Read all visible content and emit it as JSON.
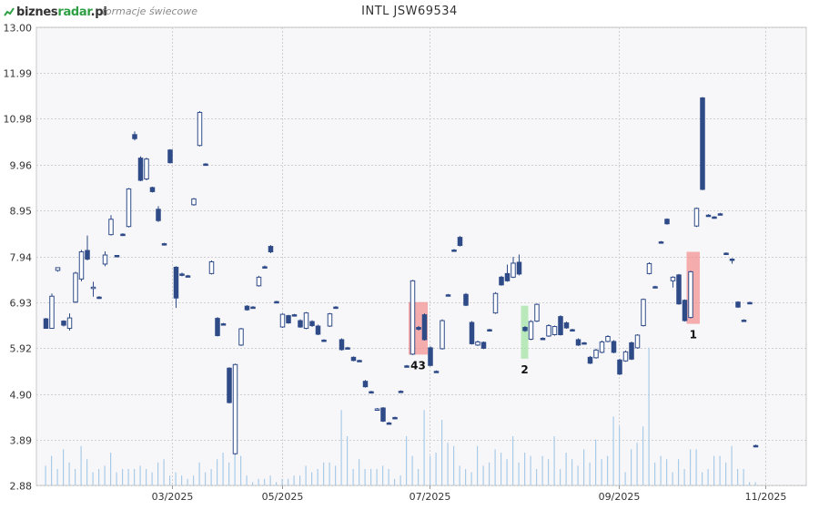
{
  "header": {
    "logo_biznes": "biznes",
    "logo_radar": "radar",
    "logo_pl": ".pl",
    "subtitle": "formacje świecowe",
    "title": "INTL JSW69534"
  },
  "colors": {
    "bear": "#2e4a87",
    "bull_fill": "#ffffff",
    "bull_stroke": "#2e4a87",
    "volume": "#a9cbe8",
    "pattern_bear": "#f28c8c",
    "pattern_bull": "#9ee39e",
    "grid": "#d0d0d0",
    "plot_bg": "#f7f7fa"
  },
  "chart_data": {
    "type": "candlestick",
    "title": "INTL JSW69534",
    "ylim": [
      2.88,
      13.0
    ],
    "y_ticks": [
      "2.88",
      "3.89",
      "4.90",
      "5.92",
      "6.93",
      "7.94",
      "8.95",
      "9.96",
      "10.98",
      "11.99",
      "13.00"
    ],
    "x_ticks": [
      "03/2025",
      "05/2025",
      "07/2025",
      "09/2025",
      "11/2025"
    ],
    "grid": true,
    "candles": [
      [
        6.56,
        6.35,
        6.58,
        6.35
      ],
      [
        6.35,
        7.06,
        7.12,
        6.35
      ],
      [
        7.63,
        7.69,
        7.69,
        7.6
      ],
      [
        6.51,
        6.42,
        6.53,
        6.39
      ],
      [
        6.35,
        6.58,
        6.68,
        6.3
      ],
      [
        6.93,
        7.57,
        7.6,
        6.91
      ],
      [
        7.44,
        8.04,
        8.08,
        7.39
      ],
      [
        8.07,
        7.88,
        8.4,
        7.85
      ],
      [
        7.26,
        7.26,
        7.38,
        7.05
      ],
      [
        7.04,
        7.03,
        7.06,
        7.0
      ],
      [
        7.77,
        7.97,
        8.05,
        7.72
      ],
      [
        8.42,
        8.76,
        8.85,
        8.4
      ],
      [
        7.96,
        7.95,
        7.97,
        7.92
      ],
      [
        8.43,
        8.41,
        8.45,
        8.39
      ],
      [
        8.6,
        9.43,
        9.45,
        8.58
      ],
      [
        10.63,
        10.54,
        10.7,
        10.5
      ],
      [
        10.11,
        9.62,
        10.15,
        9.6
      ],
      [
        9.65,
        10.09,
        10.12,
        9.62
      ],
      [
        9.46,
        9.37,
        9.48,
        9.35
      ],
      [
        8.98,
        8.73,
        9.05,
        8.7
      ],
      [
        8.22,
        8.21,
        8.24,
        8.18
      ],
      [
        10.29,
        10.01,
        10.31,
        9.99
      ],
      [
        7.7,
        7.02,
        7.72,
        6.8
      ],
      [
        7.55,
        7.54,
        7.58,
        7.5
      ],
      [
        7.51,
        7.5,
        7.53,
        7.48
      ],
      [
        9.08,
        9.21,
        9.23,
        9.06
      ],
      [
        10.39,
        11.12,
        11.15,
        10.37
      ],
      [
        9.98,
        9.97,
        10.0,
        9.95
      ],
      [
        7.56,
        7.82,
        7.85,
        7.54
      ],
      [
        6.57,
        6.19,
        6.6,
        6.17
      ],
      [
        6.45,
        6.44,
        6.47,
        6.42
      ],
      [
        5.47,
        4.71,
        5.49,
        4.69
      ],
      [
        3.58,
        5.55,
        5.57,
        3.56
      ],
      [
        5.98,
        6.34,
        6.36,
        5.96
      ],
      [
        6.84,
        6.76,
        6.86,
        6.74
      ],
      [
        6.82,
        6.81,
        6.84,
        6.79
      ],
      [
        7.29,
        7.48,
        7.51,
        7.27
      ],
      [
        7.71,
        7.7,
        7.74,
        7.68
      ],
      [
        8.16,
        8.04,
        8.19,
        8.01
      ],
      [
        6.94,
        6.93,
        6.96,
        6.91
      ],
      [
        6.38,
        6.66,
        6.68,
        6.36
      ],
      [
        6.63,
        6.47,
        6.65,
        6.45
      ],
      [
        6.65,
        6.64,
        6.67,
        6.62
      ],
      [
        6.52,
        6.38,
        6.55,
        6.36
      ],
      [
        6.35,
        6.69,
        6.71,
        6.33
      ],
      [
        6.5,
        6.41,
        6.53,
        6.38
      ],
      [
        6.4,
        6.22,
        6.43,
        6.2
      ],
      [
        6.09,
        6.08,
        6.11,
        6.06
      ],
      [
        6.4,
        6.67,
        6.69,
        6.38
      ],
      [
        6.82,
        6.81,
        6.84,
        6.79
      ],
      [
        6.1,
        5.88,
        6.13,
        5.86
      ],
      [
        5.92,
        5.91,
        5.94,
        5.89
      ],
      [
        5.71,
        5.64,
        5.73,
        5.62
      ],
      [
        5.64,
        5.63,
        5.66,
        5.61
      ],
      [
        5.18,
        5.06,
        5.21,
        5.04
      ],
      [
        4.95,
        4.94,
        4.97,
        4.92
      ],
      [
        4.55,
        4.57,
        4.59,
        4.53
      ],
      [
        4.59,
        4.3,
        4.61,
        4.28
      ],
      [
        4.26,
        4.25,
        4.28,
        4.23
      ],
      [
        4.38,
        4.37,
        4.4,
        4.35
      ],
      [
        4.96,
        4.95,
        4.98,
        4.93
      ],
      [
        5.52,
        5.51,
        5.54,
        5.49
      ],
      [
        5.78,
        7.4,
        7.42,
        5.76
      ],
      [
        6.37,
        6.33,
        6.4,
        6.3
      ],
      [
        6.65,
        6.1,
        6.68,
        6.08
      ],
      [
        5.92,
        5.53,
        5.95,
        5.51
      ],
      [
        5.4,
        5.39,
        5.42,
        5.37
      ],
      [
        5.9,
        6.52,
        6.55,
        5.88
      ],
      [
        7.09,
        7.08,
        7.11,
        7.06
      ],
      [
        8.08,
        8.07,
        8.1,
        8.05
      ],
      [
        8.36,
        8.18,
        8.39,
        8.16
      ],
      [
        7.1,
        6.86,
        7.13,
        6.84
      ],
      [
        6.48,
        6.01,
        6.51,
        5.99
      ],
      [
        5.98,
        6.05,
        6.08,
        5.96
      ],
      [
        6.04,
        5.91,
        6.06,
        5.89
      ],
      [
        6.32,
        6.31,
        6.34,
        6.29
      ],
      [
        6.69,
        7.12,
        7.15,
        6.67
      ],
      [
        7.48,
        7.31,
        7.51,
        7.29
      ],
      [
        7.56,
        7.4,
        7.76,
        7.38
      ],
      [
        7.48,
        7.79,
        7.93,
        7.46
      ],
      [
        7.81,
        7.55,
        7.98,
        7.52
      ],
      [
        6.37,
        6.3,
        6.4,
        6.27
      ],
      [
        6.11,
        6.5,
        6.53,
        6.09
      ],
      [
        6.51,
        6.88,
        6.9,
        6.49
      ],
      [
        6.13,
        6.12,
        6.15,
        6.1
      ],
      [
        6.18,
        6.41,
        6.44,
        6.16
      ],
      [
        6.21,
        6.39,
        6.41,
        6.19
      ],
      [
        6.61,
        6.21,
        6.64,
        6.19
      ],
      [
        6.47,
        6.36,
        6.5,
        6.34
      ],
      [
        6.32,
        6.31,
        6.34,
        6.29
      ],
      [
        6.1,
        5.98,
        6.13,
        5.96
      ],
      [
        6.03,
        6.02,
        6.05,
        6.0
      ],
      [
        5.71,
        5.58,
        5.74,
        5.56
      ],
      [
        5.7,
        5.87,
        5.9,
        5.68
      ],
      [
        5.82,
        6.05,
        6.08,
        5.8
      ],
      [
        6.06,
        6.17,
        6.2,
        6.04
      ],
      [
        6.06,
        5.82,
        6.09,
        5.8
      ],
      [
        5.65,
        5.34,
        5.68,
        5.32
      ],
      [
        5.63,
        5.83,
        5.86,
        5.61
      ],
      [
        6.03,
        5.67,
        6.06,
        5.65
      ],
      [
        5.92,
        6.2,
        6.22,
        5.9
      ],
      [
        6.41,
        6.99,
        7.01,
        6.39
      ],
      [
        7.56,
        7.78,
        7.81,
        7.54
      ],
      [
        7.27,
        7.26,
        7.29,
        7.24
      ],
      [
        8.26,
        8.25,
        8.28,
        8.23
      ],
      [
        8.76,
        8.66,
        8.78,
        8.64
      ],
      [
        7.4,
        7.48,
        7.5,
        7.25
      ],
      [
        7.53,
        6.89,
        7.55,
        6.87
      ],
      [
        6.97,
        6.52,
        6.99,
        6.5
      ],
      [
        6.59,
        7.6,
        7.62,
        6.57
      ],
      [
        8.61,
        9.0,
        9.02,
        8.59
      ],
      [
        11.44,
        9.42,
        11.46,
        9.4
      ],
      [
        8.85,
        8.84,
        8.87,
        8.82
      ],
      [
        8.81,
        8.8,
        8.83,
        8.78
      ],
      [
        8.88,
        8.87,
        8.9,
        8.85
      ],
      [
        8.01,
        8.0,
        8.03,
        7.98
      ],
      [
        7.88,
        7.87,
        7.9,
        7.78
      ],
      [
        6.93,
        6.82,
        6.95,
        6.8
      ],
      [
        6.53,
        6.52,
        6.55,
        6.5
      ],
      [
        6.92,
        6.91,
        6.94,
        6.89
      ],
      [
        3.76,
        3.75,
        3.78,
        3.73
      ]
    ],
    "volume_relative": [
      0.12,
      0.18,
      0.1,
      0.22,
      0.14,
      0.1,
      0.24,
      0.16,
      0.08,
      0.1,
      0.12,
      0.2,
      0.08,
      0.1,
      0.1,
      0.1,
      0.12,
      0.1,
      0.08,
      0.14,
      0.16,
      0.06,
      0.08,
      0.06,
      0.04,
      0.06,
      0.14,
      0.08,
      0.1,
      0.16,
      0.2,
      0.14,
      0.34,
      0.18,
      0.06,
      0.02,
      0.04,
      0.04,
      0.06,
      0.02,
      0.04,
      0.04,
      0.06,
      0.06,
      0.12,
      0.08,
      0.1,
      0.14,
      0.14,
      0.12,
      0.46,
      0.3,
      0.1,
      0.16,
      0.1,
      0.1,
      0.1,
      0.12,
      0.1,
      0.04,
      0.06,
      0.3,
      0.18,
      0.1,
      0.46,
      0.18,
      0.2,
      0.4,
      0.26,
      0.24,
      0.12,
      0.1,
      0.08,
      0.24,
      0.12,
      0.14,
      0.22,
      0.2,
      0.16,
      0.3,
      0.14,
      0.2,
      0.18,
      0.1,
      0.18,
      0.16,
      0.3,
      0.1,
      0.2,
      0.16,
      0.12,
      0.22,
      0.14,
      0.28,
      0.16,
      0.18,
      0.42,
      0.36,
      0.08,
      0.22,
      0.26,
      0.36,
      0.84,
      0.14,
      0.18,
      0.16,
      0.08,
      0.16,
      0.1,
      0.22,
      0.22,
      0.08,
      0.1,
      0.18,
      0.18,
      0.14,
      0.24,
      0.1,
      0.1,
      0.02,
      0.02
    ],
    "patterns": [
      {
        "label": "43",
        "type": "bearish",
        "start": 62,
        "end": 64,
        "low": 5.77,
        "high": 6.93
      },
      {
        "label": "2",
        "type": "bullish",
        "start": 81,
        "end": 81,
        "low": 5.68,
        "high": 6.85
      },
      {
        "label": "1",
        "type": "bearish",
        "start": 109,
        "end": 110,
        "low": 6.45,
        "high": 8.04
      }
    ]
  }
}
